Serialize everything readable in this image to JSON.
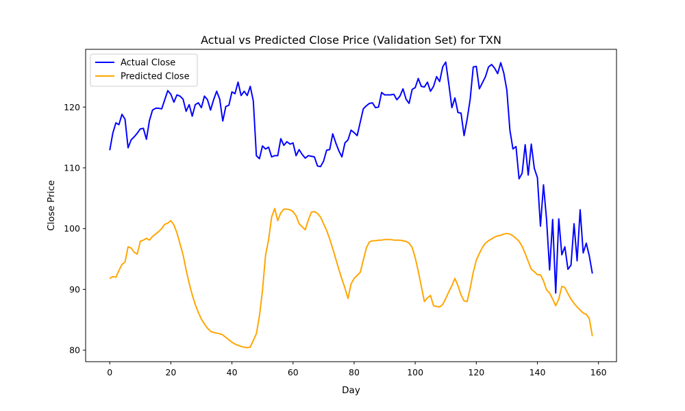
{
  "chart_data": {
    "type": "line",
    "title": "Actual vs Predicted Close Price (Validation Set) for TXN",
    "xlabel": "Day",
    "ylabel": "Close Price",
    "xlim": [
      -7.9,
      165.9
    ],
    "ylim": [
      78.1,
      129.5
    ],
    "xticks": [
      0,
      20,
      40,
      60,
      80,
      100,
      120,
      140,
      160
    ],
    "yticks": [
      80,
      90,
      100,
      110,
      120
    ],
    "grid": false,
    "legend_position": "upper-left",
    "series": [
      {
        "name": "Actual Close",
        "color": "#0000ff",
        "x": [
          0,
          1,
          2,
          3,
          4,
          5,
          6,
          7,
          8,
          9,
          10,
          11,
          12,
          13,
          14,
          15,
          16,
          17,
          18,
          19,
          20,
          21,
          22,
          23,
          24,
          25,
          26,
          27,
          28,
          29,
          30,
          31,
          32,
          33,
          34,
          35,
          36,
          37,
          38,
          39,
          40,
          41,
          42,
          43,
          44,
          45,
          46,
          47,
          48,
          49,
          50,
          51,
          52,
          53,
          54,
          55,
          56,
          57,
          58,
          59,
          60,
          61,
          62,
          63,
          64,
          65,
          66,
          67,
          68,
          69,
          70,
          71,
          72,
          73,
          74,
          75,
          76,
          77,
          78,
          79,
          80,
          81,
          82,
          83,
          84,
          85,
          86,
          87,
          88,
          89,
          90,
          91,
          92,
          93,
          94,
          95,
          96,
          97,
          98,
          99,
          100,
          101,
          102,
          103,
          104,
          105,
          106,
          107,
          108,
          109,
          110,
          111,
          112,
          113,
          114,
          115,
          116,
          117,
          118,
          119,
          120,
          121,
          122,
          123,
          124,
          125,
          126,
          127,
          128,
          129,
          130,
          131,
          132,
          133,
          134,
          135,
          136,
          137,
          138,
          139,
          140,
          141,
          142,
          143,
          144,
          145,
          146,
          147,
          148,
          149,
          150,
          151,
          152,
          153,
          154,
          155,
          156,
          157,
          158
        ],
        "values": [
          112.9,
          115.7,
          117.4,
          117.1,
          118.8,
          118.0,
          113.3,
          114.6,
          115.1,
          115.7,
          116.4,
          116.5,
          114.7,
          117.8,
          119.5,
          119.8,
          119.8,
          119.7,
          121.2,
          122.7,
          122.1,
          120.8,
          122.0,
          121.8,
          121.3,
          119.3,
          120.4,
          118.5,
          120.4,
          120.7,
          119.9,
          121.8,
          121.2,
          119.5,
          121.2,
          122.6,
          121.3,
          117.7,
          120.1,
          120.3,
          122.5,
          122.2,
          124.1,
          121.9,
          122.6,
          121.9,
          123.4,
          121.0,
          112.0,
          111.5,
          113.6,
          113.1,
          113.4,
          111.8,
          112.0,
          112.0,
          114.8,
          113.7,
          114.3,
          113.9,
          114.1,
          112.0,
          113.0,
          112.2,
          111.6,
          112.0,
          111.9,
          111.8,
          110.3,
          110.2,
          111.1,
          112.9,
          113.0,
          115.6,
          114.1,
          112.8,
          111.8,
          114.1,
          114.6,
          116.2,
          115.8,
          115.3,
          117.5,
          119.7,
          120.2,
          120.6,
          120.7,
          119.9,
          120.0,
          122.4,
          122.0,
          122.0,
          122.0,
          122.1,
          121.2,
          121.8,
          123.0,
          121.3,
          120.6,
          122.9,
          123.2,
          124.7,
          123.4,
          123.3,
          124.1,
          122.6,
          123.4,
          125.0,
          124.2,
          126.6,
          127.4,
          123.8,
          119.9,
          121.5,
          119.1,
          119.0,
          115.3,
          118.0,
          121.3,
          126.6,
          126.7,
          123.0,
          124.0,
          125.0,
          126.6,
          127.0,
          126.4,
          125.5,
          127.3,
          125.6,
          122.8,
          116.2,
          113.1,
          113.5,
          108.2,
          109.1,
          113.8,
          108.8,
          113.9,
          109.9,
          108.4,
          100.4,
          107.2,
          101.5,
          93.2,
          101.5,
          89.4,
          101.6,
          95.7,
          97.0,
          93.3,
          94.0,
          100.8,
          94.7,
          103.1,
          96.0,
          97.6,
          95.5,
          92.6
        ]
      },
      {
        "name": "Predicted Close",
        "color": "#ffa500",
        "x": [
          0,
          1,
          2,
          3,
          4,
          5,
          6,
          7,
          8,
          9,
          10,
          11,
          12,
          13,
          14,
          15,
          16,
          17,
          18,
          19,
          20,
          21,
          22,
          23,
          24,
          25,
          26,
          27,
          28,
          29,
          30,
          31,
          32,
          33,
          34,
          35,
          36,
          37,
          38,
          39,
          40,
          41,
          42,
          43,
          44,
          45,
          46,
          47,
          48,
          49,
          50,
          51,
          52,
          53,
          54,
          55,
          56,
          57,
          58,
          59,
          60,
          61,
          62,
          63,
          64,
          65,
          66,
          67,
          68,
          69,
          70,
          71,
          72,
          73,
          74,
          75,
          76,
          77,
          78,
          79,
          80,
          81,
          82,
          83,
          84,
          85,
          86,
          87,
          88,
          89,
          90,
          91,
          92,
          93,
          94,
          95,
          96,
          97,
          98,
          99,
          100,
          101,
          102,
          103,
          104,
          105,
          106,
          107,
          108,
          109,
          110,
          111,
          112,
          113,
          114,
          115,
          116,
          117,
          118,
          119,
          120,
          121,
          122,
          123,
          124,
          125,
          126,
          127,
          128,
          129,
          130,
          131,
          132,
          133,
          134,
          135,
          136,
          137,
          138,
          139,
          140,
          141,
          142,
          143,
          144,
          145,
          146,
          147,
          148,
          149,
          150,
          151,
          152,
          153,
          154,
          155,
          156,
          157,
          158
        ],
        "values": [
          91.8,
          92.1,
          92.0,
          93.1,
          94.1,
          94.5,
          97.0,
          96.8,
          96.1,
          95.8,
          97.9,
          98.1,
          98.4,
          98.1,
          98.7,
          99.1,
          99.5,
          100.0,
          100.7,
          100.9,
          101.3,
          100.6,
          99.3,
          97.5,
          95.7,
          93.2,
          91.0,
          89.1,
          87.5,
          86.2,
          85.1,
          84.3,
          83.6,
          83.1,
          82.9,
          82.8,
          82.7,
          82.5,
          82.1,
          81.7,
          81.3,
          81.0,
          80.8,
          80.6,
          80.5,
          80.4,
          80.5,
          81.6,
          82.7,
          85.6,
          89.8,
          95.6,
          98.2,
          101.9,
          103.3,
          101.3,
          102.6,
          103.2,
          103.2,
          103.1,
          102.8,
          102.1,
          100.8,
          100.3,
          99.8,
          101.4,
          102.7,
          102.8,
          102.5,
          101.9,
          100.8,
          99.7,
          98.3,
          96.7,
          95.0,
          93.3,
          91.7,
          90.2,
          88.5,
          90.9,
          91.8,
          92.3,
          92.8,
          94.8,
          96.8,
          97.8,
          98.0,
          98.0,
          98.1,
          98.1,
          98.2,
          98.2,
          98.2,
          98.1,
          98.1,
          98.1,
          98.0,
          97.9,
          97.6,
          96.9,
          95.2,
          93.0,
          90.5,
          88.0,
          88.6,
          89.0,
          87.3,
          87.2,
          87.1,
          87.5,
          88.5,
          89.6,
          90.6,
          91.8,
          90.6,
          89.1,
          88.1,
          88.0,
          90.2,
          92.8,
          94.8,
          95.9,
          96.9,
          97.6,
          98.0,
          98.3,
          98.6,
          98.8,
          98.9,
          99.1,
          99.2,
          99.1,
          98.8,
          98.4,
          97.9,
          97.1,
          95.9,
          94.6,
          93.3,
          92.9,
          92.4,
          92.4,
          91.4,
          89.9,
          89.4,
          88.4,
          87.3,
          88.4,
          90.5,
          90.3,
          89.3,
          88.4,
          87.7,
          87.1,
          86.6,
          86.1,
          85.9,
          85.2,
          82.3
        ]
      }
    ]
  }
}
